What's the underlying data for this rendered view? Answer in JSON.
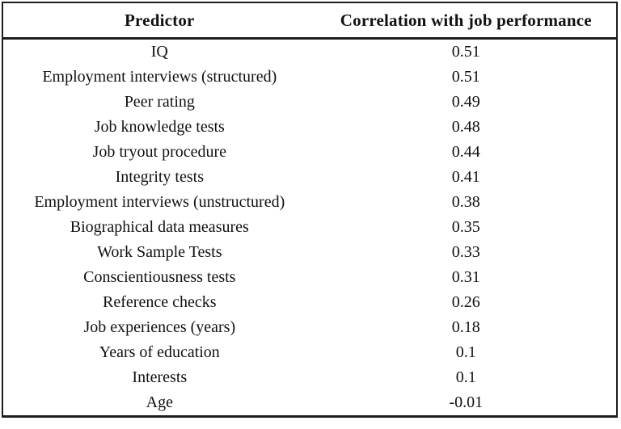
{
  "table": {
    "columns": [
      {
        "label": "Predictor"
      },
      {
        "label": "Correlation with job performance"
      }
    ],
    "rows": [
      {
        "predictor": "IQ",
        "correlation": "0.51"
      },
      {
        "predictor": "Employment interviews (structured)",
        "correlation": "0.51"
      },
      {
        "predictor": "Peer rating",
        "correlation": "0.49"
      },
      {
        "predictor": "Job knowledge tests",
        "correlation": "0.48"
      },
      {
        "predictor": "Job tryout procedure",
        "correlation": "0.44"
      },
      {
        "predictor": "Integrity tests",
        "correlation": "0.41"
      },
      {
        "predictor": "Employment interviews (unstructured)",
        "correlation": "0.38"
      },
      {
        "predictor": "Biographical data measures",
        "correlation": "0.35"
      },
      {
        "predictor": "Work Sample Tests",
        "correlation": "0.33"
      },
      {
        "predictor": "Conscientiousness tests",
        "correlation": "0.31"
      },
      {
        "predictor": "Reference checks",
        "correlation": "0.26"
      },
      {
        "predictor": "Job experiences (years)",
        "correlation": "0.18"
      },
      {
        "predictor": "Years of education",
        "correlation": "0.1"
      },
      {
        "predictor": "Interests",
        "correlation": "0.1"
      },
      {
        "predictor": "Age",
        "correlation": "-0.01"
      }
    ],
    "border_color": "#1d1d1d",
    "background_color": "#ffffff"
  }
}
